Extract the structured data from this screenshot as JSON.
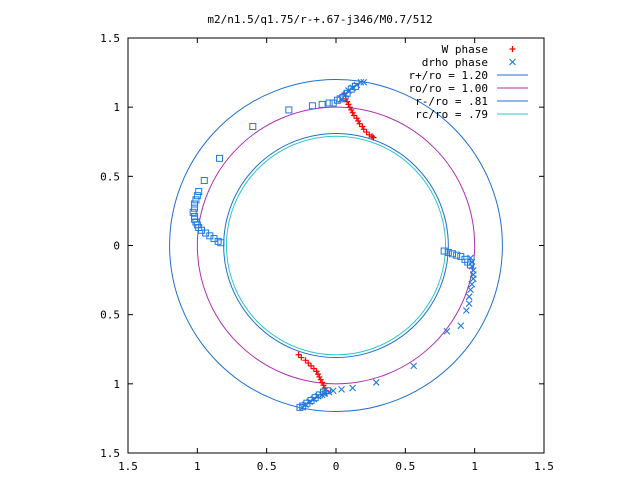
{
  "chart_data": {
    "type": "scatter",
    "title": "m2/n1.5/q1.75/r-+.67-j346/M0.7/512",
    "xlim": [
      -1.5,
      1.5
    ],
    "ylim": [
      -1.5,
      1.5
    ],
    "x_ticks": [
      {
        "value": -1.5,
        "label": "1.5"
      },
      {
        "value": -1,
        "label": "1"
      },
      {
        "value": -0.5,
        "label": "0.5"
      },
      {
        "value": 0,
        "label": "0"
      },
      {
        "value": 0.5,
        "label": "0.5"
      },
      {
        "value": 1,
        "label": "1"
      },
      {
        "value": 1.5,
        "label": "1.5"
      }
    ],
    "y_ticks": [
      {
        "value": 1.5,
        "label": "1.5"
      },
      {
        "value": 1,
        "label": "1"
      },
      {
        "value": 0.5,
        "label": "0.5"
      },
      {
        "value": 0,
        "label": "0"
      },
      {
        "value": -0.5,
        "label": "0.5"
      },
      {
        "value": -1,
        "label": "1"
      },
      {
        "value": -1.5,
        "label": "1.5"
      }
    ],
    "grid": false,
    "legend_position": "top-right",
    "circles": [
      {
        "name": "r+/ro = 1.20",
        "radius": 1.2,
        "color": "#1f6fd0"
      },
      {
        "name": "ro/ro = 1.00",
        "radius": 1.0,
        "color": "#b030b0"
      },
      {
        "name": "r-/ro = .81",
        "radius": 0.81,
        "color": "#1f6fd0"
      },
      {
        "name": "rc/ro = .79",
        "radius": 0.79,
        "color": "#30c8c8"
      }
    ],
    "series": [
      {
        "name": "W phase",
        "marker": "plus",
        "color": "#ff0000",
        "points": [
          [
            0.06,
            1.1
          ],
          [
            0.07,
            1.08
          ],
          [
            0.07,
            1.06
          ],
          [
            0.08,
            1.04
          ],
          [
            0.09,
            1.02
          ],
          [
            0.1,
            1.0
          ],
          [
            0.11,
            0.98
          ],
          [
            0.12,
            0.96
          ],
          [
            0.13,
            0.94
          ],
          [
            0.15,
            0.92
          ],
          [
            0.16,
            0.9
          ],
          [
            0.17,
            0.88
          ],
          [
            0.19,
            0.86
          ],
          [
            0.2,
            0.84
          ],
          [
            0.22,
            0.82
          ],
          [
            0.24,
            0.8
          ],
          [
            0.26,
            0.79
          ],
          [
            0.27,
            0.78
          ],
          [
            -0.27,
            -0.79
          ],
          [
            -0.25,
            -0.81
          ],
          [
            -0.22,
            -0.83
          ],
          [
            -0.2,
            -0.85
          ],
          [
            -0.18,
            -0.87
          ],
          [
            -0.16,
            -0.89
          ],
          [
            -0.14,
            -0.91
          ],
          [
            -0.13,
            -0.93
          ],
          [
            -0.12,
            -0.95
          ],
          [
            -0.11,
            -0.97
          ],
          [
            -0.1,
            -0.99
          ],
          [
            -0.09,
            -1.01
          ],
          [
            -0.08,
            -1.03
          ],
          [
            -0.07,
            -1.05
          ],
          [
            -0.07,
            -1.07
          ]
        ]
      },
      {
        "name": "drho phase",
        "marker": "cross",
        "color": "#1e78e0",
        "points": [
          [
            0.04,
            1.06
          ],
          [
            0.07,
            1.09
          ],
          [
            0.09,
            1.12
          ],
          [
            0.12,
            1.14
          ],
          [
            0.15,
            1.16
          ],
          [
            0.18,
            1.18
          ],
          [
            0.2,
            1.18
          ],
          [
            0.97,
            -0.09
          ],
          [
            0.98,
            -0.12
          ],
          [
            0.98,
            -0.15
          ],
          [
            0.99,
            -0.18
          ],
          [
            0.99,
            -0.21
          ],
          [
            0.99,
            -0.24
          ],
          [
            0.98,
            -0.28
          ],
          [
            0.97,
            -0.32
          ],
          [
            0.96,
            -0.37
          ],
          [
            0.96,
            -0.42
          ],
          [
            0.94,
            -0.47
          ],
          [
            0.9,
            -0.58
          ],
          [
            0.8,
            -0.62
          ],
          [
            0.56,
            -0.87
          ],
          [
            0.29,
            -0.99
          ],
          [
            0.12,
            -1.03
          ],
          [
            0.04,
            -1.04
          ],
          [
            -0.02,
            -1.05
          ],
          [
            -0.05,
            -1.06
          ],
          [
            -0.08,
            -1.07
          ],
          [
            -0.1,
            -1.08
          ],
          [
            -0.13,
            -1.09
          ],
          [
            -0.16,
            -1.11
          ],
          [
            -0.19,
            -1.13
          ],
          [
            -0.22,
            -1.15
          ],
          [
            -0.24,
            -1.17
          ]
        ]
      },
      {
        "name": "drho phase (square markers)",
        "marker": "square",
        "color": "#1e78e0",
        "points": [
          [
            -0.02,
            1.03
          ],
          [
            -0.05,
            1.03
          ],
          [
            -0.1,
            1.02
          ],
          [
            -0.17,
            1.01
          ],
          [
            -0.34,
            0.98
          ],
          [
            -0.6,
            0.86
          ],
          [
            -0.84,
            0.63
          ],
          [
            -0.95,
            0.47
          ],
          [
            -0.99,
            0.39
          ],
          [
            -1.0,
            0.36
          ],
          [
            -1.01,
            0.33
          ],
          [
            -1.02,
            0.3
          ],
          [
            -1.02,
            0.27
          ],
          [
            -1.03,
            0.24
          ],
          [
            -1.02,
            0.21
          ],
          [
            -1.02,
            0.19
          ],
          [
            -1.01,
            0.17
          ],
          [
            -1.0,
            0.15
          ],
          [
            -0.99,
            0.13
          ],
          [
            -0.97,
            0.11
          ],
          [
            -0.94,
            0.09
          ],
          [
            -0.91,
            0.07
          ],
          [
            -0.88,
            0.05
          ],
          [
            -0.85,
            0.03
          ],
          [
            -0.83,
            0.02
          ],
          [
            0.78,
            -0.04
          ],
          [
            0.81,
            -0.05
          ],
          [
            0.84,
            -0.06
          ],
          [
            0.87,
            -0.07
          ],
          [
            0.9,
            -0.08
          ],
          [
            0.93,
            -0.1
          ],
          [
            0.95,
            -0.12
          ],
          [
            0.97,
            -0.14
          ],
          [
            0.01,
            1.05
          ],
          [
            0.03,
            1.06
          ],
          [
            0.05,
            1.07
          ],
          [
            0.08,
            1.1
          ],
          [
            0.11,
            1.13
          ],
          [
            0.14,
            1.15
          ],
          [
            -0.06,
            -1.05
          ],
          [
            -0.09,
            -1.06
          ],
          [
            -0.12,
            -1.08
          ],
          [
            -0.15,
            -1.1
          ],
          [
            -0.18,
            -1.12
          ],
          [
            -0.21,
            -1.14
          ],
          [
            -0.24,
            -1.16
          ],
          [
            -0.26,
            -1.17
          ]
        ]
      }
    ]
  }
}
